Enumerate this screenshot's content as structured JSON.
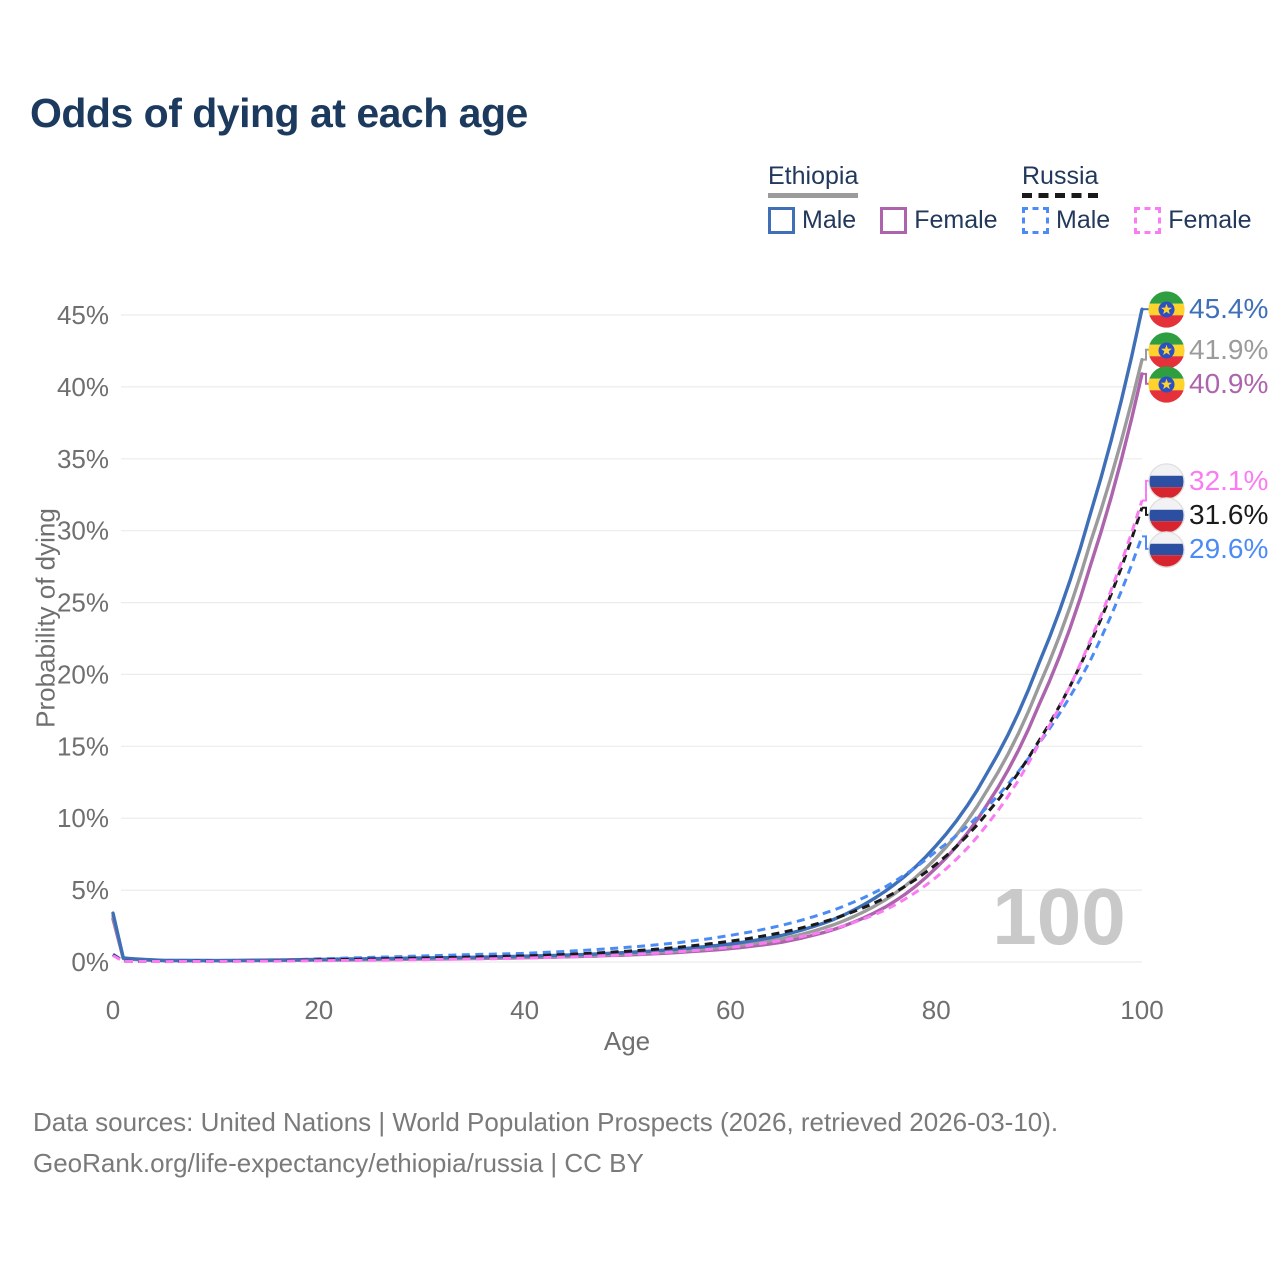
{
  "page": {
    "title": "Odds of dying at each age",
    "watermark_age": "100",
    "background": "#ffffff",
    "title_color": "#1c3a5e"
  },
  "legend": {
    "groups": [
      {
        "country": "Ethiopia",
        "line_style": "solid",
        "underline_color": "#9b9b9b",
        "items": [
          {
            "label": "Male",
            "color": "#3e6fb7"
          },
          {
            "label": "Female",
            "color": "#ad64ad"
          }
        ]
      },
      {
        "country": "Russia",
        "line_style": "dashed",
        "underline_color": "#1a1a1a",
        "items": [
          {
            "label": "Male",
            "color": "#4c8bf5"
          },
          {
            "label": "Female",
            "color": "#fb7bf3"
          }
        ]
      }
    ]
  },
  "chart_data": {
    "type": "line",
    "title": "Odds of dying at each age",
    "xlabel": "Age",
    "ylabel": "Probability of dying",
    "xlim": [
      0,
      100
    ],
    "ylim": [
      0,
      45
    ],
    "xticks": [
      0,
      20,
      40,
      60,
      80,
      100
    ],
    "yticks": [
      0,
      5,
      10,
      15,
      20,
      25,
      30,
      35,
      40,
      45
    ],
    "ytick_suffix": "%",
    "grid": "horizontal-only",
    "hover_age": "100",
    "gridline_color": "#ececec",
    "series": [
      {
        "name": "Ethiopia Male",
        "country": "Ethiopia",
        "sex": "male",
        "line_style": "solid",
        "color": "#3e6fb7",
        "end_label": "45.4%",
        "end_value": 45.4,
        "flag_icon": "ethiopia-flag-icon",
        "points": [
          [
            0,
            3.4
          ],
          [
            1,
            0.28
          ],
          [
            5,
            0.11
          ],
          [
            10,
            0.1
          ],
          [
            15,
            0.13
          ],
          [
            20,
            0.18
          ],
          [
            25,
            0.23
          ],
          [
            30,
            0.28
          ],
          [
            35,
            0.33
          ],
          [
            40,
            0.4
          ],
          [
            45,
            0.5
          ],
          [
            50,
            0.66
          ],
          [
            55,
            0.9
          ],
          [
            60,
            1.25
          ],
          [
            65,
            1.85
          ],
          [
            70,
            2.95
          ],
          [
            75,
            4.9
          ],
          [
            80,
            8.1
          ],
          [
            85,
            13.2
          ],
          [
            90,
            20.8
          ],
          [
            95,
            31.2
          ],
          [
            100,
            45.4
          ]
        ]
      },
      {
        "name": "Ethiopia Both sexes",
        "country": "Ethiopia",
        "sex": "both",
        "line_style": "solid",
        "color": "#9b9b9b",
        "end_label": "41.9%",
        "end_value": 41.9,
        "flag_icon": "ethiopia-flag-icon",
        "points": [
          [
            0,
            3.2
          ],
          [
            1,
            0.26
          ],
          [
            5,
            0.1
          ],
          [
            10,
            0.09
          ],
          [
            15,
            0.11
          ],
          [
            20,
            0.15
          ],
          [
            25,
            0.19
          ],
          [
            30,
            0.24
          ],
          [
            35,
            0.29
          ],
          [
            40,
            0.35
          ],
          [
            45,
            0.44
          ],
          [
            50,
            0.57
          ],
          [
            55,
            0.78
          ],
          [
            60,
            1.08
          ],
          [
            65,
            1.6
          ],
          [
            70,
            2.58
          ],
          [
            75,
            4.3
          ],
          [
            80,
            7.25
          ],
          [
            85,
            12.0
          ],
          [
            90,
            19.2
          ],
          [
            95,
            29.2
          ],
          [
            100,
            41.9
          ]
        ]
      },
      {
        "name": "Ethiopia Female",
        "country": "Ethiopia",
        "sex": "female",
        "line_style": "solid",
        "color": "#ad64ad",
        "end_label": "40.9%",
        "end_value": 40.9,
        "flag_icon": "ethiopia-flag-icon",
        "points": [
          [
            0,
            3.0
          ],
          [
            1,
            0.24
          ],
          [
            5,
            0.09
          ],
          [
            10,
            0.08
          ],
          [
            15,
            0.1
          ],
          [
            20,
            0.13
          ],
          [
            25,
            0.16
          ],
          [
            30,
            0.2
          ],
          [
            35,
            0.24
          ],
          [
            40,
            0.3
          ],
          [
            45,
            0.38
          ],
          [
            50,
            0.49
          ],
          [
            55,
            0.67
          ],
          [
            60,
            0.93
          ],
          [
            65,
            1.38
          ],
          [
            70,
            2.25
          ],
          [
            75,
            3.8
          ],
          [
            80,
            6.55
          ],
          [
            85,
            11.0
          ],
          [
            90,
            17.9
          ],
          [
            95,
            27.6
          ],
          [
            100,
            40.9
          ]
        ]
      },
      {
        "name": "Russia Female",
        "country": "Russia",
        "sex": "female",
        "line_style": "dashed",
        "color": "#fb7bf3",
        "end_label": "32.1%",
        "end_value": 32.1,
        "flag_icon": "russia-flag-icon",
        "points": [
          [
            0,
            0.45
          ],
          [
            1,
            0.05
          ],
          [
            5,
            0.03
          ],
          [
            10,
            0.04
          ],
          [
            15,
            0.06
          ],
          [
            20,
            0.09
          ],
          [
            25,
            0.12
          ],
          [
            30,
            0.16
          ],
          [
            35,
            0.21
          ],
          [
            40,
            0.27
          ],
          [
            45,
            0.37
          ],
          [
            50,
            0.51
          ],
          [
            55,
            0.72
          ],
          [
            60,
            1.02
          ],
          [
            65,
            1.5
          ],
          [
            70,
            2.3
          ],
          [
            75,
            3.6
          ],
          [
            80,
            5.9
          ],
          [
            85,
            9.6
          ],
          [
            90,
            15.2
          ],
          [
            95,
            22.4
          ],
          [
            100,
            32.1
          ]
        ]
      },
      {
        "name": "Russia Both sexes",
        "country": "Russia",
        "sex": "both",
        "line_style": "dashed",
        "color": "#1a1a1a",
        "end_label": "31.6%",
        "end_value": 31.6,
        "flag_icon": "russia-flag-icon",
        "points": [
          [
            0,
            0.5
          ],
          [
            1,
            0.06
          ],
          [
            5,
            0.04
          ],
          [
            10,
            0.05
          ],
          [
            15,
            0.09
          ],
          [
            20,
            0.15
          ],
          [
            25,
            0.21
          ],
          [
            30,
            0.28
          ],
          [
            35,
            0.35
          ],
          [
            40,
            0.42
          ],
          [
            45,
            0.56
          ],
          [
            50,
            0.75
          ],
          [
            55,
            1.03
          ],
          [
            60,
            1.45
          ],
          [
            65,
            2.05
          ],
          [
            70,
            3.0
          ],
          [
            75,
            4.45
          ],
          [
            80,
            6.8
          ],
          [
            85,
            10.4
          ],
          [
            90,
            15.4
          ],
          [
            95,
            22.2
          ],
          [
            100,
            31.6
          ]
        ]
      },
      {
        "name": "Russia Male",
        "country": "Russia",
        "sex": "male",
        "line_style": "dashed",
        "color": "#4c8bf5",
        "end_label": "29.6%",
        "end_value": 29.6,
        "flag_icon": "russia-flag-icon",
        "points": [
          [
            0,
            0.55
          ],
          [
            1,
            0.07
          ],
          [
            5,
            0.05
          ],
          [
            10,
            0.06
          ],
          [
            15,
            0.12
          ],
          [
            20,
            0.22
          ],
          [
            25,
            0.32
          ],
          [
            30,
            0.42
          ],
          [
            35,
            0.52
          ],
          [
            40,
            0.6
          ],
          [
            45,
            0.78
          ],
          [
            50,
            1.02
          ],
          [
            55,
            1.35
          ],
          [
            60,
            1.85
          ],
          [
            65,
            2.55
          ],
          [
            70,
            3.6
          ],
          [
            75,
            5.2
          ],
          [
            80,
            7.7
          ],
          [
            85,
            10.8
          ],
          [
            90,
            15.2
          ],
          [
            95,
            21.0
          ],
          [
            100,
            29.6
          ]
        ]
      }
    ]
  },
  "footer": {
    "line1": "Data sources: United Nations | World Population Prospects (2026, retrieved 2026-03-10).",
    "line2": "GeoRank.org/life-expectancy/ethiopia/russia | CC BY"
  }
}
